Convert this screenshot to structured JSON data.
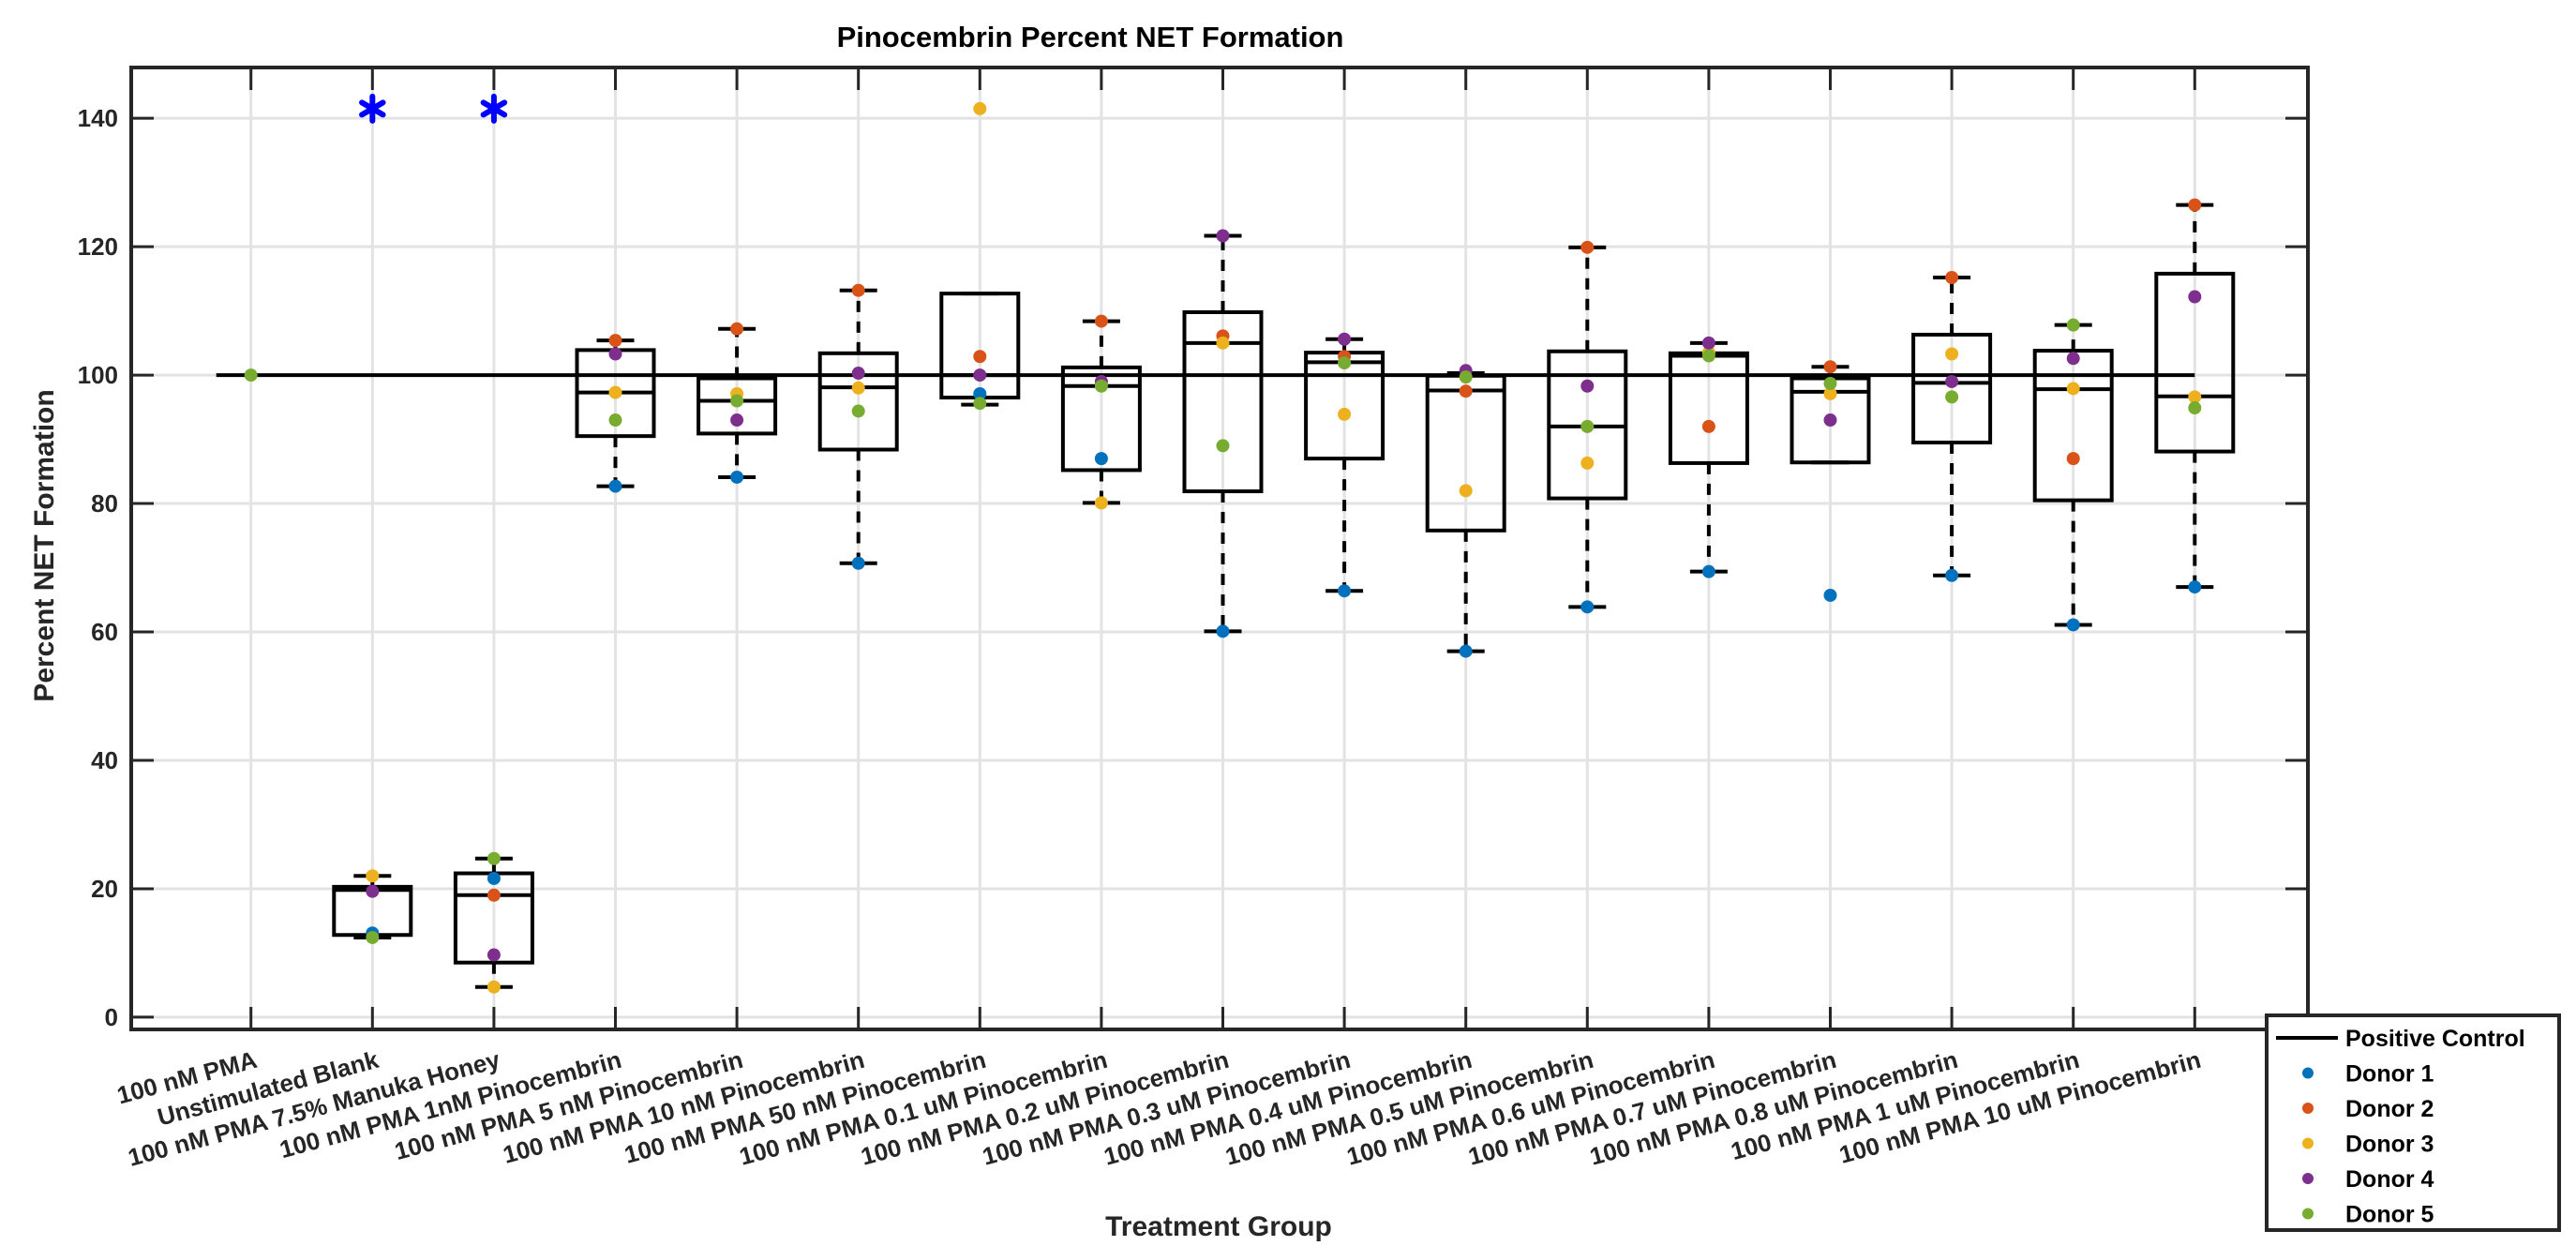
{
  "chart_data": {
    "type": "box",
    "title": "Pinocembrin Percent NET Formation",
    "xlabel": "Treatment Group",
    "ylabel": "Percent NET Formation",
    "ylim": [
      -2,
      148
    ],
    "yticks": [
      0,
      20,
      40,
      60,
      80,
      100,
      120,
      140
    ],
    "grid": true,
    "legend_position": "outside-bottom-right",
    "categories": [
      "100 nM PMA",
      "Unstimulated Blank",
      "100 nM PMA 7.5% Manuka Honey",
      "100 nM PMA 1nM Pinocembrin",
      "100 nM PMA 5 nM Pinocembrin",
      "100 nM PMA 10 nM Pinocembrin",
      "100 nM PMA 50 nM Pinocembrin",
      "100 nM PMA 0.1 uM Pinocembrin",
      "100 nM PMA 0.2 uM Pinocembrin",
      "100 nM PMA 0.3 uM Pinocembrin",
      "100 nM PMA 0.4 uM Pinocembrin",
      "100 nM PMA 0.5 uM Pinocembrin",
      "100 nM PMA 0.6 uM Pinocembrin",
      "100 nM PMA 0.7 uM Pinocembrin",
      "100 nM PMA 0.8 uM Pinocembrin",
      "100 nM PMA 1 uM Pinocembrin",
      "100 nM PMA 10 uM Pinocembrin"
    ],
    "positive_control": {
      "name": "Positive Control",
      "value": 100,
      "color": "#000000"
    },
    "boxes": [
      null,
      {
        "whisker_low": 12.4,
        "q1": 12.8,
        "median": 19.8,
        "q3": 20.3,
        "whisker_high": 22.0
      },
      {
        "whisker_low": 4.7,
        "q1": 8.5,
        "median": 19.0,
        "q3": 22.4,
        "whisker_high": 24.7
      },
      {
        "whisker_low": 82.7,
        "q1": 90.5,
        "median": 97.3,
        "q3": 103.9,
        "whisker_high": 105.4
      },
      {
        "whisker_low": 84.1,
        "q1": 90.9,
        "median": 96.0,
        "q3": 99.5,
        "whisker_high": 107.2
      },
      {
        "whisker_low": 70.7,
        "q1": 88.4,
        "median": 98.1,
        "q3": 103.4,
        "whisker_high": 113.2
      },
      {
        "whisker_low": 95.4,
        "q1": 96.5,
        "median": 100.0,
        "q3": 112.7,
        "whisker_high": 112.7
      },
      {
        "whisker_low": 80.1,
        "q1": 85.2,
        "median": 98.3,
        "q3": 101.2,
        "whisker_high": 108.4
      },
      {
        "whisker_low": 60.1,
        "q1": 81.9,
        "median": 105.0,
        "q3": 109.8,
        "whisker_high": 121.7
      },
      {
        "whisker_low": 66.4,
        "q1": 87.0,
        "median": 102.0,
        "q3": 103.5,
        "whisker_high": 105.6
      },
      {
        "whisker_low": 57.0,
        "q1": 75.8,
        "median": 97.6,
        "q3": 99.9,
        "whisker_high": 100.3
      },
      {
        "whisker_low": 63.9,
        "q1": 80.8,
        "median": 92.0,
        "q3": 103.7,
        "whisker_high": 119.9
      },
      {
        "whisker_low": 69.4,
        "q1": 86.3,
        "median": 103.0,
        "q3": 103.4,
        "whisker_high": 105.0
      },
      {
        "whisker_low": 86.4,
        "q1": 86.4,
        "median": 97.4,
        "q3": 99.5,
        "whisker_high": 101.3
      },
      {
        "whisker_low": 68.8,
        "q1": 89.5,
        "median": 98.8,
        "q3": 106.3,
        "whisker_high": 115.2
      },
      {
        "whisker_low": 61.1,
        "q1": 80.5,
        "median": 97.8,
        "q3": 103.8,
        "whisker_high": 107.8
      },
      {
        "whisker_low": 67.0,
        "q1": 88.1,
        "median": 96.7,
        "q3": 115.8,
        "whisker_high": 126.5
      }
    ],
    "series": [
      {
        "name": "Donor 1",
        "color": "#0072BD",
        "values": [
          null,
          13.1,
          21.6,
          82.7,
          84.1,
          70.7,
          97.1,
          87.0,
          60.1,
          66.4,
          57.0,
          63.9,
          69.4,
          65.7,
          68.8,
          61.1,
          67.0
        ]
      },
      {
        "name": "Donor 2",
        "color": "#D95319",
        "values": [
          null,
          null,
          19.0,
          105.4,
          107.2,
          113.2,
          102.9,
          108.4,
          106.1,
          102.9,
          97.5,
          119.9,
          92.0,
          101.3,
          115.2,
          87.0,
          126.5
        ]
      },
      {
        "name": "Donor 3",
        "color": "#EDB120",
        "values": [
          null,
          22.0,
          4.7,
          97.3,
          97.1,
          98.0,
          141.5,
          80.1,
          105.0,
          93.9,
          82.0,
          86.3,
          103.5,
          97.1,
          103.3,
          97.9,
          96.6
        ]
      },
      {
        "name": "Donor 4",
        "color": "#7E2F8E",
        "values": [
          null,
          19.6,
          9.7,
          103.3,
          93.0,
          100.3,
          100.0,
          99.0,
          121.7,
          105.6,
          100.7,
          98.3,
          105.0,
          93.0,
          99.0,
          102.6,
          112.2
        ]
      },
      {
        "name": "Donor 5",
        "color": "#77AC30",
        "values": [
          100.0,
          12.4,
          24.7,
          93.0,
          96.0,
          94.4,
          95.6,
          98.3,
          89.0,
          101.9,
          99.7,
          92.0,
          103.0,
          98.7,
          96.6,
          107.8,
          94.9
        ]
      }
    ],
    "significance_markers": [
      {
        "category_index": 1,
        "symbol": "*",
        "value": 141.5,
        "color": "#0000FF"
      },
      {
        "category_index": 2,
        "symbol": "*",
        "value": 141.5,
        "color": "#0000FF"
      }
    ],
    "legend": [
      {
        "label": "Positive Control",
        "kind": "line",
        "color": "#000000"
      },
      {
        "label": "Donor 1",
        "kind": "dot",
        "color": "#0072BD"
      },
      {
        "label": "Donor 2",
        "kind": "dot",
        "color": "#D95319"
      },
      {
        "label": "Donor 3",
        "kind": "dot",
        "color": "#EDB120"
      },
      {
        "label": "Donor 4",
        "kind": "dot",
        "color": "#7E2F8E"
      },
      {
        "label": "Donor 5",
        "kind": "dot",
        "color": "#77AC30"
      }
    ]
  }
}
